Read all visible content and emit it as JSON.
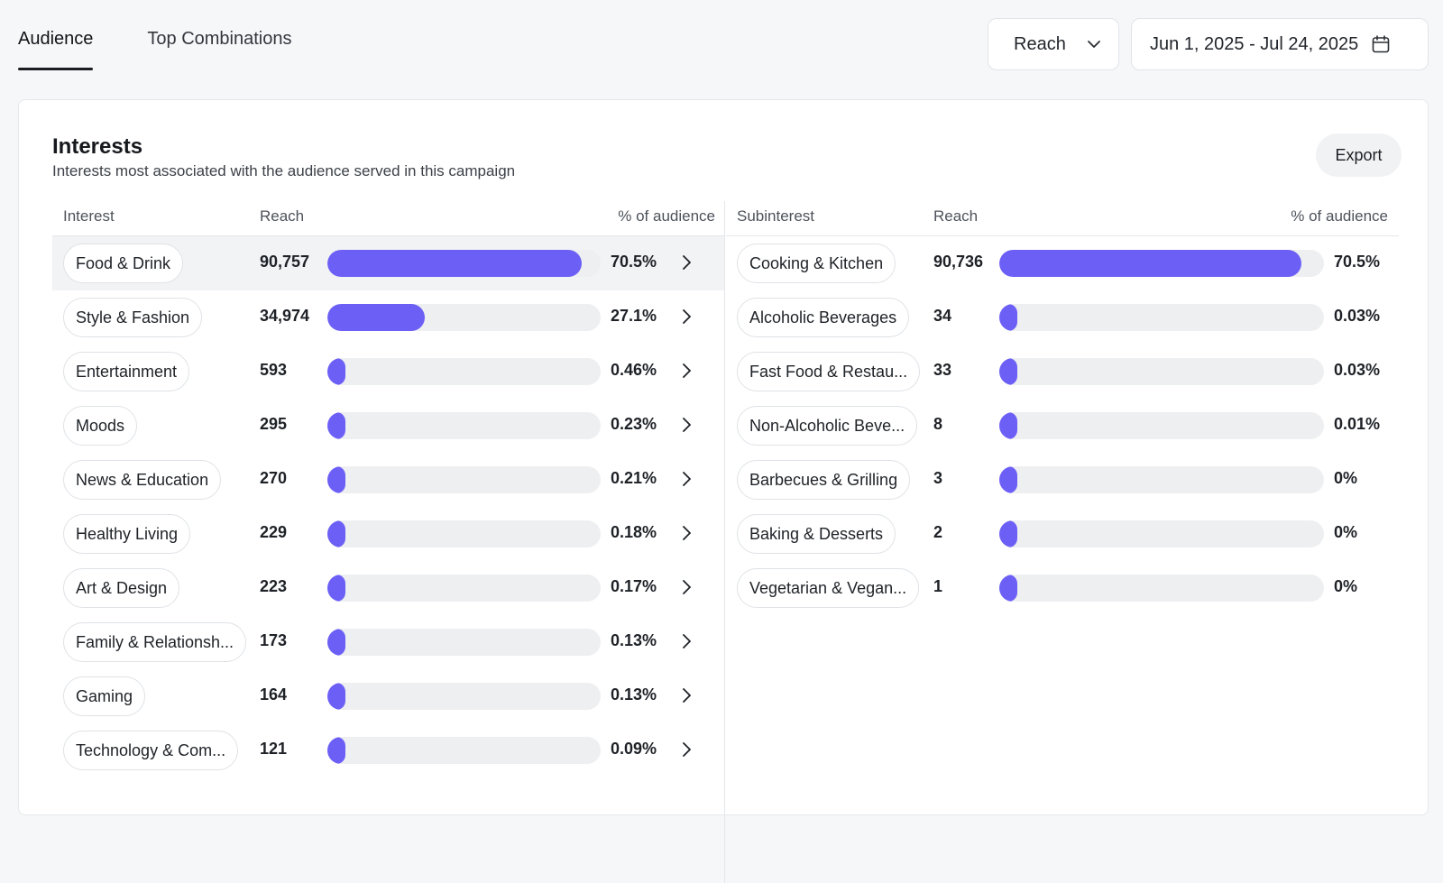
{
  "tabs": [
    {
      "label": "Audience",
      "active": true
    },
    {
      "label": "Top Combinations",
      "active": false
    }
  ],
  "controls": {
    "metric": "Reach",
    "date_range": "Jun 1, 2025 - Jul 24, 2025"
  },
  "card": {
    "title": "Interests",
    "subtitle": "Interests most associated with the audience served in this campaign",
    "export_label": "Export"
  },
  "interests": {
    "headers": {
      "name": "Interest",
      "reach": "Reach",
      "pct": "% of audience"
    },
    "rows": [
      {
        "name": "Food & Drink",
        "reach": "90,757",
        "pct": "70.5%",
        "fraction": 0.705,
        "selected": true
      },
      {
        "name": "Style & Fashion",
        "reach": "34,974",
        "pct": "27.1%",
        "fraction": 0.271
      },
      {
        "name": "Entertainment",
        "reach": "593",
        "pct": "0.46%",
        "fraction": 0.0046
      },
      {
        "name": "Moods",
        "reach": "295",
        "pct": "0.23%",
        "fraction": 0.0023
      },
      {
        "name": "News & Education",
        "reach": "270",
        "pct": "0.21%",
        "fraction": 0.0021
      },
      {
        "name": "Healthy Living",
        "reach": "229",
        "pct": "0.18%",
        "fraction": 0.0018
      },
      {
        "name": "Art & Design",
        "reach": "223",
        "pct": "0.17%",
        "fraction": 0.0017
      },
      {
        "name": "Family & Relationsh...",
        "reach": "173",
        "pct": "0.13%",
        "fraction": 0.0013
      },
      {
        "name": "Gaming",
        "reach": "164",
        "pct": "0.13%",
        "fraction": 0.0013
      },
      {
        "name": "Technology & Com...",
        "reach": "121",
        "pct": "0.09%",
        "fraction": 0.0009
      }
    ]
  },
  "subinterests": {
    "headers": {
      "name": "Subinterest",
      "reach": "Reach",
      "pct": "% of audience"
    },
    "rows": [
      {
        "name": "Cooking & Kitchen",
        "reach": "90,736",
        "pct": "70.5%",
        "fraction": 0.705
      },
      {
        "name": "Alcoholic Beverages",
        "reach": "34",
        "pct": "0.03%",
        "fraction": 0.0003
      },
      {
        "name": "Fast Food & Restau...",
        "reach": "33",
        "pct": "0.03%",
        "fraction": 0.0003
      },
      {
        "name": "Non-Alcoholic Beve...",
        "reach": "8",
        "pct": "0.01%",
        "fraction": 0.0001
      },
      {
        "name": "Barbecues & Grilling",
        "reach": "3",
        "pct": "0%",
        "fraction": 0
      },
      {
        "name": "Baking & Desserts",
        "reach": "2",
        "pct": "0%",
        "fraction": 0
      },
      {
        "name": "Vegetarian & Vegan...",
        "reach": "1",
        "pct": "0%",
        "fraction": 0
      }
    ]
  },
  "colors": {
    "accent": "#6c5ff6",
    "track": "#eeeff1"
  },
  "icons": {
    "metric_dropdown": "chevron-down-icon",
    "date": "calendar-icon",
    "row_action": "chevron-right-icon"
  }
}
